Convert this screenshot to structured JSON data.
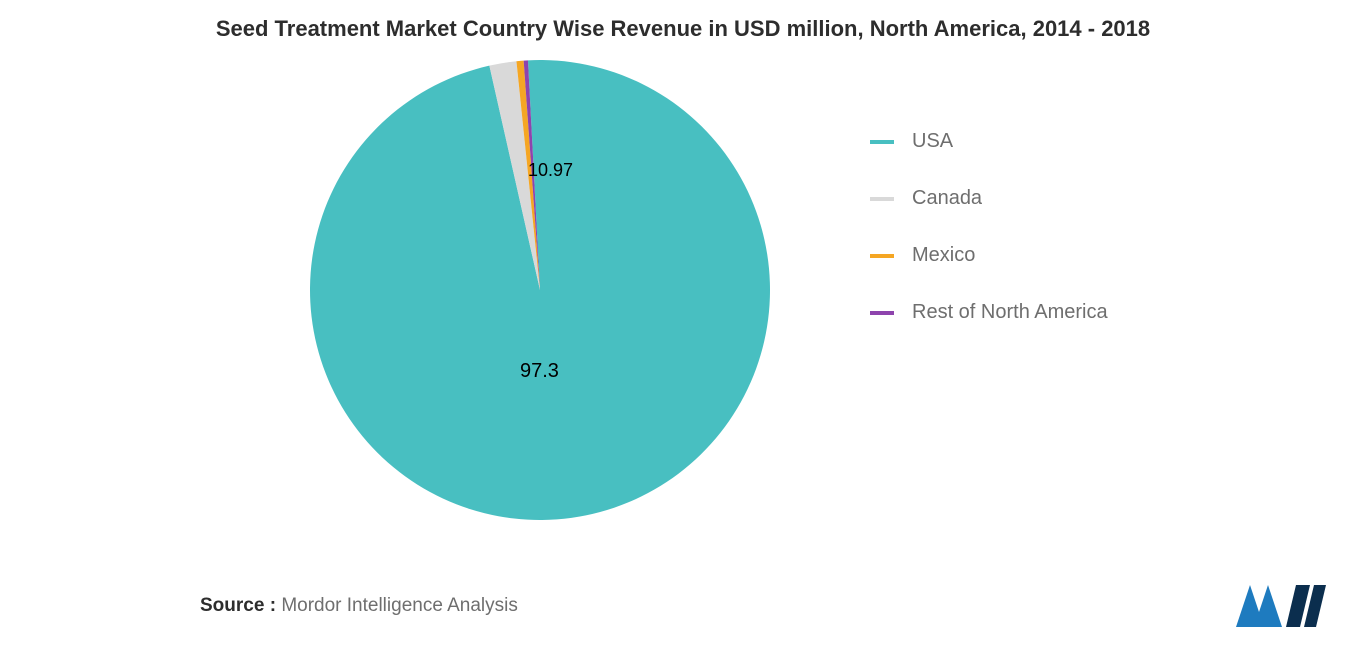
{
  "title": {
    "text": "Seed Treatment Market Country Wise Revenue in USD million, North America, 2014 - 2018",
    "fontsize": 22,
    "fontweight": 700,
    "color": "#2d2d2d"
  },
  "chart": {
    "type": "pie",
    "background_color": "#ffffff",
    "radius": 230,
    "center_label_value": "97.3",
    "center_label_fontsize": 20,
    "center_label_color": "#000000",
    "top_label_value": "10.97",
    "top_label_fontsize": 18,
    "top_label_color": "#000000",
    "slices": [
      {
        "name": "USA",
        "value": 97.3,
        "color": "#48bfc1"
      },
      {
        "name": "Canada",
        "value": 1.9,
        "color": "#d9d9d9"
      },
      {
        "name": "Mexico",
        "value": 0.5,
        "color": "#f5a623"
      },
      {
        "name": "Rest of North America",
        "value": 0.3,
        "color": "#8e44ad"
      }
    ],
    "start_angle_deg": -93
  },
  "legend": {
    "fontsize": 20,
    "label_color": "#6e6e6e",
    "swatch_height": 4,
    "items": [
      {
        "label": "USA",
        "color": "#48bfc1"
      },
      {
        "label": "Canada",
        "color": "#d9d9d9"
      },
      {
        "label": "Mexico",
        "color": "#f5a623"
      },
      {
        "label": "Rest of North America",
        "color": "#8e44ad"
      }
    ]
  },
  "source": {
    "prefix": "Source :",
    "text": "Mordor Intelligence Analysis",
    "fontsize": 19,
    "prefix_color": "#2d2d2d",
    "text_color": "#6e6e6e"
  },
  "logo": {
    "bar_color_left": "#1e7bbf",
    "bar_color_right": "#0b2e4e"
  }
}
